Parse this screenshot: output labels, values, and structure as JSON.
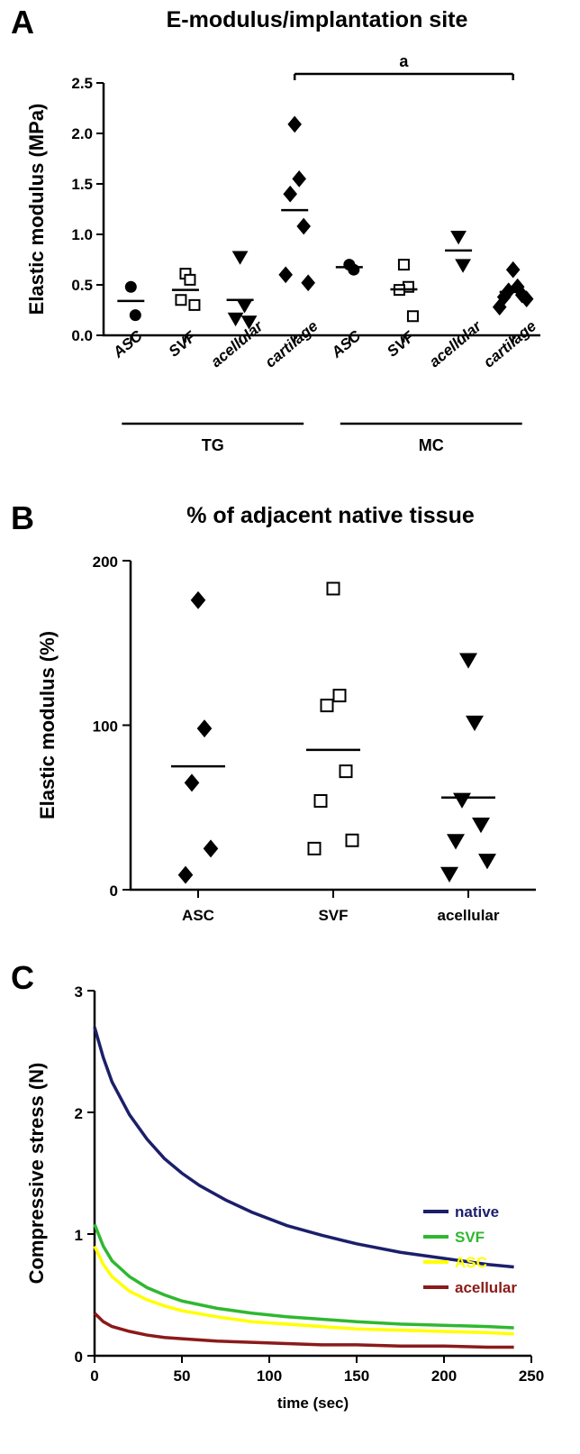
{
  "figure_width": 644,
  "figure_height": 1613,
  "panels": {
    "A": {
      "label": "A",
      "title": "E-modulus/implantation site",
      "type": "scatter",
      "y_axis": {
        "title": "Elastic modulus (MPa)",
        "title_fontsize": 22,
        "min": 0.0,
        "max": 2.5,
        "tick_step": 0.5,
        "ticks": [
          0.0,
          0.5,
          1.0,
          1.5,
          2.0,
          2.5
        ]
      },
      "x_categories": [
        "ASC",
        "SVF",
        "acellular",
        "cartilage",
        "ASC",
        "SVF",
        "acellular",
        "cartilage"
      ],
      "group_bars": [
        {
          "label": "TG",
          "from_cat": 0,
          "to_cat": 3
        },
        {
          "label": "MC",
          "from_cat": 4,
          "to_cat": 7
        }
      ],
      "significance": {
        "label": "a",
        "from_cat": 3,
        "to_cat": 7
      },
      "markers": {
        "ASC": {
          "shape": "circle",
          "fill": "#000000",
          "stroke": "#000000",
          "size": 11
        },
        "SVF": {
          "shape": "square",
          "fill": "#ffffff",
          "stroke": "#000000",
          "size": 11
        },
        "acellular": {
          "shape": "triangle-down",
          "fill": "#000000",
          "stroke": "#000000",
          "size": 13
        },
        "cartilage": {
          "shape": "diamond",
          "fill": "#000000",
          "stroke": "#000000",
          "size": 13
        }
      },
      "series": {
        "TG_ASC": {
          "values": [
            0.48,
            0.2
          ],
          "mean": 0.34
        },
        "TG_SVF": {
          "values": [
            0.61,
            0.55,
            0.35,
            0.3
          ],
          "mean": 0.45
        },
        "TG_acellular": {
          "values": [
            0.78,
            0.3,
            0.17,
            0.14
          ],
          "mean": 0.35
        },
        "TG_cartilage": {
          "values": [
            2.09,
            1.55,
            1.4,
            1.08,
            0.6,
            0.52
          ],
          "mean": 1.24
        },
        "MC_ASC": {
          "values": [
            0.7,
            0.65
          ],
          "mean": 0.675
        },
        "MC_SVF": {
          "values": [
            0.7,
            0.48,
            0.45,
            0.19
          ],
          "mean": 0.455
        },
        "MC_acellular": {
          "values": [
            0.98,
            0.7
          ],
          "mean": 0.84
        },
        "MC_cartilage": {
          "values": [
            0.65,
            0.48,
            0.44,
            0.4,
            0.38,
            0.36,
            0.28
          ],
          "mean": 0.43
        }
      }
    },
    "B": {
      "label": "B",
      "title": "% of adjacent native tissue",
      "type": "scatter",
      "y_axis": {
        "title": "Elastic modulus (%)",
        "title_fontsize": 24,
        "min": 0,
        "max": 200,
        "tick_step": 100,
        "ticks": [
          0,
          100,
          200
        ]
      },
      "x_categories": [
        "ASC",
        "SVF",
        "acellular"
      ],
      "markers": {
        "ASC": {
          "shape": "diamond",
          "fill": "#000000",
          "stroke": "#000000",
          "size": 14
        },
        "SVF": {
          "shape": "square",
          "fill": "#ffffff",
          "stroke": "#000000",
          "size": 13
        },
        "acellular": {
          "shape": "triangle-down",
          "fill": "#000000",
          "stroke": "#000000",
          "size": 15
        }
      },
      "series": {
        "ASC": {
          "values": [
            176,
            98,
            65,
            25,
            9
          ],
          "mean": 75
        },
        "SVF": {
          "values": [
            183,
            118,
            112,
            72,
            54,
            30,
            25
          ],
          "mean": 85
        },
        "acellular": {
          "values": [
            140,
            102,
            55,
            40,
            30,
            18,
            10
          ],
          "mean": 56
        }
      }
    },
    "C": {
      "label": "C",
      "type": "line",
      "title": "",
      "background_color": "#ffffff",
      "y_axis": {
        "title": "Compressive stress (N)",
        "title_fontsize": 22,
        "min": 0,
        "max": 3,
        "tick_step": 1,
        "ticks": [
          0,
          1,
          2,
          3
        ]
      },
      "x_axis": {
        "title": "time (sec)",
        "title_fontsize": 20,
        "min": 0,
        "max": 250,
        "tick_step": 50,
        "ticks": [
          0,
          50,
          100,
          150,
          200,
          250
        ]
      },
      "line_width": 3.5,
      "legend": {
        "position": "right-inside",
        "items": [
          {
            "label": "native",
            "color": "#1b1f6a"
          },
          {
            "label": "SVF",
            "color": "#2fb82f"
          },
          {
            "label": "ASC",
            "color": "#ffff00"
          },
          {
            "label": "acellular",
            "color": "#8b1a1a"
          }
        ]
      },
      "curves": {
        "native": {
          "color": "#1b1f6a",
          "points": [
            [
              0,
              2.7
            ],
            [
              5,
              2.45
            ],
            [
              10,
              2.25
            ],
            [
              20,
              1.98
            ],
            [
              30,
              1.78
            ],
            [
              40,
              1.62
            ],
            [
              50,
              1.5
            ],
            [
              60,
              1.4
            ],
            [
              75,
              1.28
            ],
            [
              90,
              1.18
            ],
            [
              110,
              1.07
            ],
            [
              130,
              0.99
            ],
            [
              150,
              0.92
            ],
            [
              175,
              0.85
            ],
            [
              200,
              0.8
            ],
            [
              225,
              0.75
            ],
            [
              240,
              0.73
            ]
          ]
        },
        "SVF": {
          "color": "#2fb82f",
          "points": [
            [
              0,
              1.08
            ],
            [
              5,
              0.9
            ],
            [
              10,
              0.78
            ],
            [
              20,
              0.65
            ],
            [
              30,
              0.56
            ],
            [
              40,
              0.5
            ],
            [
              50,
              0.45
            ],
            [
              70,
              0.39
            ],
            [
              90,
              0.35
            ],
            [
              110,
              0.32
            ],
            [
              130,
              0.3
            ],
            [
              150,
              0.28
            ],
            [
              175,
              0.26
            ],
            [
              200,
              0.25
            ],
            [
              225,
              0.24
            ],
            [
              240,
              0.23
            ]
          ]
        },
        "ASC": {
          "color": "#ffff00",
          "points": [
            [
              0,
              0.9
            ],
            [
              5,
              0.75
            ],
            [
              10,
              0.65
            ],
            [
              20,
              0.53
            ],
            [
              30,
              0.46
            ],
            [
              40,
              0.41
            ],
            [
              50,
              0.37
            ],
            [
              70,
              0.32
            ],
            [
              90,
              0.28
            ],
            [
              110,
              0.26
            ],
            [
              130,
              0.24
            ],
            [
              150,
              0.22
            ],
            [
              175,
              0.21
            ],
            [
              200,
              0.2
            ],
            [
              225,
              0.19
            ],
            [
              240,
              0.18
            ]
          ]
        },
        "acellular": {
          "color": "#8b1a1a",
          "points": [
            [
              0,
              0.35
            ],
            [
              5,
              0.28
            ],
            [
              10,
              0.24
            ],
            [
              20,
              0.2
            ],
            [
              30,
              0.17
            ],
            [
              40,
              0.15
            ],
            [
              50,
              0.14
            ],
            [
              70,
              0.12
            ],
            [
              90,
              0.11
            ],
            [
              110,
              0.1
            ],
            [
              130,
              0.09
            ],
            [
              150,
              0.09
            ],
            [
              175,
              0.08
            ],
            [
              200,
              0.08
            ],
            [
              225,
              0.07
            ],
            [
              240,
              0.07
            ]
          ]
        }
      }
    }
  }
}
